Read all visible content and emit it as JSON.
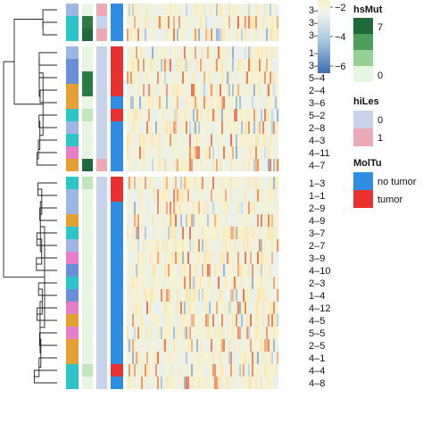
{
  "chart_data": {
    "type": "heatmap",
    "row_labels": [
      "3–3",
      "3–2",
      "3–4",
      "1–2",
      "3–1",
      "5–4",
      "2–4",
      "3–6",
      "5–2",
      "2–8",
      "4–3",
      "4–11",
      "4–7",
      "1–3",
      "1–1",
      "2–9",
      "4–9",
      "3–7",
      "2–7",
      "3–9",
      "4–10",
      "2–3",
      "1–4",
      "4–12",
      "4–5",
      "5–5",
      "2–5",
      "4–1",
      "4–4",
      "4–8"
    ],
    "groups": [
      3,
      10,
      17
    ],
    "annotations": {
      "hsMut": [
        0,
        6,
        7,
        0,
        0,
        6,
        6,
        0,
        1,
        0,
        0,
        0,
        7,
        1,
        0,
        0,
        0,
        0,
        0,
        0,
        0,
        0,
        0,
        0,
        0,
        0,
        0,
        0,
        1,
        0
      ],
      "hiLes": [
        1,
        0,
        1,
        0,
        0,
        0,
        0,
        0,
        0,
        0,
        0,
        0,
        1,
        0,
        0,
        0,
        0,
        0,
        0,
        0,
        0,
        0,
        0,
        0,
        0,
        0,
        0,
        0,
        0,
        0
      ],
      "MolTu": [
        "no tumor",
        "no tumor",
        "no tumor",
        "tumor",
        "tumor",
        "tumor",
        "tumor",
        "no tumor",
        "tumor",
        "no tumor",
        "no tumor",
        "no tumor",
        "no tumor",
        "tumor",
        "tumor",
        "no tumor",
        "no tumor",
        "no tumor",
        "no tumor",
        "no tumor",
        "no tumor",
        "no tumor",
        "no tumor",
        "no tumor",
        "no tumor",
        "no tumor",
        "no tumor",
        "no tumor",
        "tumor",
        "no tumor"
      ]
    },
    "value_scale": {
      "title": "",
      "ticks": [
        -2,
        -4,
        -6
      ],
      "range": [
        -7,
        0
      ],
      "colors": [
        "#3d6fb0",
        "#e6f0f5",
        "#fbf2c8",
        "#fbdfa0",
        "#d73027"
      ]
    },
    "legends": [
      {
        "title": "hsMut",
        "ticks": [
          "7",
          "0"
        ],
        "colors": [
          "#1f6a3a",
          "#4f9e5c",
          "#97d093",
          "#e7f5e3"
        ]
      },
      {
        "title": "hiLes",
        "levels": [
          "0",
          "1"
        ],
        "colors": [
          "#c6d3ea",
          "#eaa9b4"
        ]
      },
      {
        "title": "MolTu",
        "levels": [
          "no tumor",
          "tumor"
        ],
        "colors": [
          "#2f8de4",
          "#e8312f"
        ]
      }
    ]
  }
}
